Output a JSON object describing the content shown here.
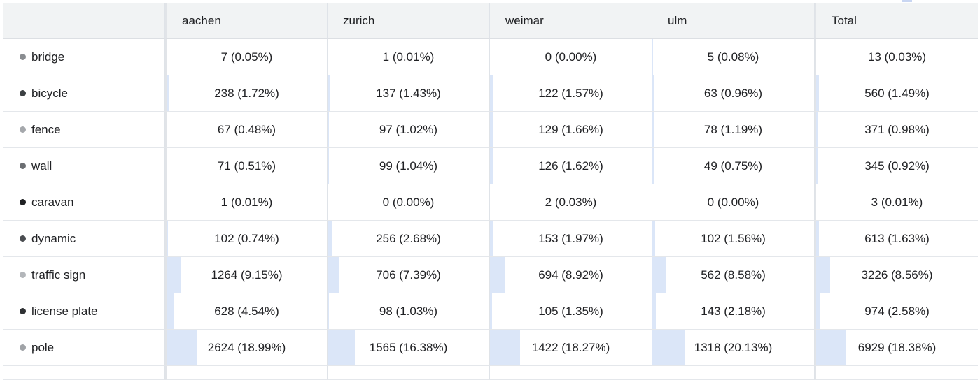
{
  "table": {
    "columns": [
      "",
      "aachen",
      "zurich",
      "weimar",
      "ulm",
      "Total"
    ],
    "rows": [
      {
        "label": "bridge",
        "dot_color": "#8a8d91",
        "cells": [
          {
            "text": "7 (0.05%)",
            "fraction": 0.0005
          },
          {
            "text": "1 (0.01%)",
            "fraction": 0.0001
          },
          {
            "text": "0 (0.00%)",
            "fraction": 0.0
          },
          {
            "text": "5 (0.08%)",
            "fraction": 0.0008
          },
          {
            "text": "13 (0.03%)",
            "fraction": 0.0003
          }
        ]
      },
      {
        "label": "bicycle",
        "dot_color": "#3c4043",
        "cells": [
          {
            "text": "238 (1.72%)",
            "fraction": 0.0172
          },
          {
            "text": "137 (1.43%)",
            "fraction": 0.0143
          },
          {
            "text": "122 (1.57%)",
            "fraction": 0.0157
          },
          {
            "text": "63 (0.96%)",
            "fraction": 0.0096
          },
          {
            "text": "560 (1.49%)",
            "fraction": 0.0149
          }
        ]
      },
      {
        "label": "fence",
        "dot_color": "#a5a8ac",
        "cells": [
          {
            "text": "67 (0.48%)",
            "fraction": 0.0048
          },
          {
            "text": "97 (1.02%)",
            "fraction": 0.0102
          },
          {
            "text": "129 (1.66%)",
            "fraction": 0.0166
          },
          {
            "text": "78 (1.19%)",
            "fraction": 0.0119
          },
          {
            "text": "371 (0.98%)",
            "fraction": 0.0098
          }
        ]
      },
      {
        "label": "wall",
        "dot_color": "#6b6e72",
        "cells": [
          {
            "text": "71 (0.51%)",
            "fraction": 0.0051
          },
          {
            "text": "99 (1.04%)",
            "fraction": 0.0104
          },
          {
            "text": "126 (1.62%)",
            "fraction": 0.0162
          },
          {
            "text": "49 (0.75%)",
            "fraction": 0.0075
          },
          {
            "text": "345 (0.92%)",
            "fraction": 0.0092
          }
        ]
      },
      {
        "label": "caravan",
        "dot_color": "#1f2123",
        "cells": [
          {
            "text": "1 (0.01%)",
            "fraction": 0.0001
          },
          {
            "text": "0 (0.00%)",
            "fraction": 0.0
          },
          {
            "text": "2 (0.03%)",
            "fraction": 0.0003
          },
          {
            "text": "0 (0.00%)",
            "fraction": 0.0
          },
          {
            "text": "3 (0.01%)",
            "fraction": 0.0001
          }
        ]
      },
      {
        "label": "dynamic",
        "dot_color": "#4a4d51",
        "cells": [
          {
            "text": "102 (0.74%)",
            "fraction": 0.0074
          },
          {
            "text": "256 (2.68%)",
            "fraction": 0.0268
          },
          {
            "text": "153 (1.97%)",
            "fraction": 0.0197
          },
          {
            "text": "102 (1.56%)",
            "fraction": 0.0156
          },
          {
            "text": "613 (1.63%)",
            "fraction": 0.0163
          }
        ]
      },
      {
        "label": "traffic sign",
        "dot_color": "#b3b6ba",
        "cells": [
          {
            "text": "1264 (9.15%)",
            "fraction": 0.0915
          },
          {
            "text": "706 (7.39%)",
            "fraction": 0.0739
          },
          {
            "text": "694 (8.92%)",
            "fraction": 0.0892
          },
          {
            "text": "562 (8.58%)",
            "fraction": 0.0858
          },
          {
            "text": "3226 (8.56%)",
            "fraction": 0.0856
          }
        ]
      },
      {
        "label": "license plate",
        "dot_color": "#2f3134",
        "cells": [
          {
            "text": "628 (4.54%)",
            "fraction": 0.0454
          },
          {
            "text": "98 (1.03%)",
            "fraction": 0.0103
          },
          {
            "text": "105 (1.35%)",
            "fraction": 0.0135
          },
          {
            "text": "143 (2.18%)",
            "fraction": 0.0218
          },
          {
            "text": "974 (2.58%)",
            "fraction": 0.0258
          }
        ]
      },
      {
        "label": "pole",
        "dot_color": "#a0a3a7",
        "cells": [
          {
            "text": "2624 (18.99%)",
            "fraction": 0.1899
          },
          {
            "text": "1565 (16.38%)",
            "fraction": 0.1638
          },
          {
            "text": "1422 (18.27%)",
            "fraction": 0.1827
          },
          {
            "text": "1318 (20.13%)",
            "fraction": 0.2013
          },
          {
            "text": "6929 (18.38%)",
            "fraction": 0.1838
          }
        ]
      }
    ]
  },
  "colors": {
    "bar_fill": "#dbe6f8",
    "header_bg": "#f1f3f4",
    "grid_line": "#dfe3e8"
  }
}
